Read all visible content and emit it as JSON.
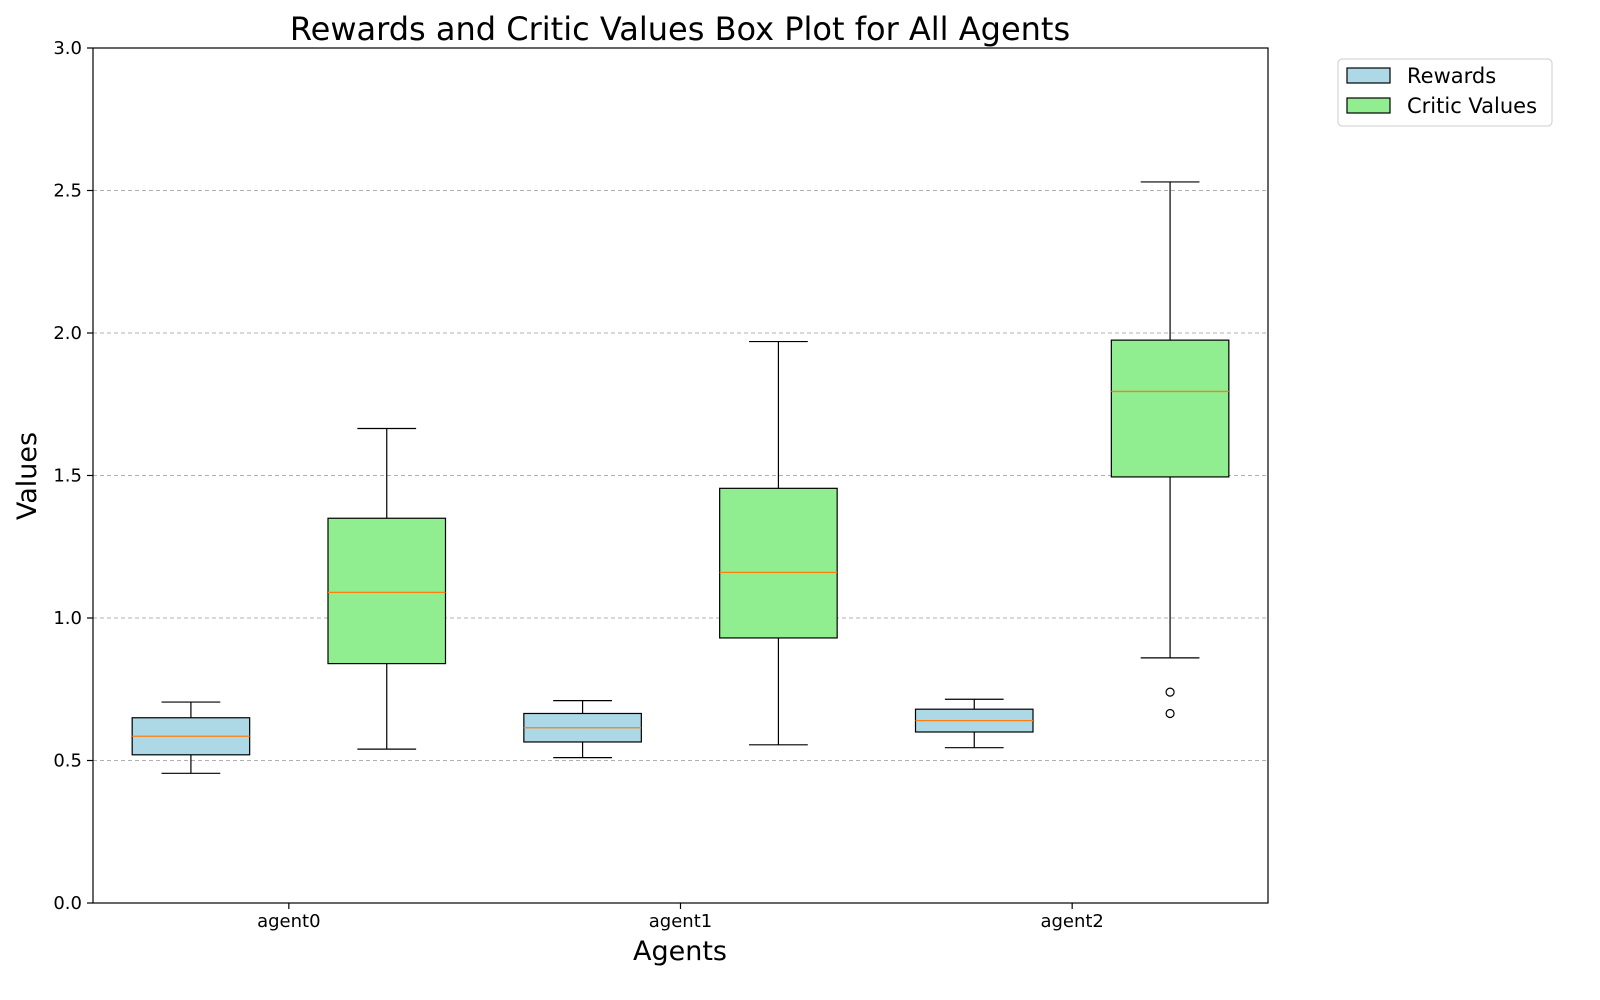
{
  "chart_data": {
    "type": "box",
    "title": "Rewards and Critic Values Box Plot for All Agents",
    "xlabel": "Agents",
    "ylabel": "Values",
    "ylim": [
      0,
      3
    ],
    "yticks": [
      "0.0",
      "0.5",
      "1.0",
      "1.5",
      "2.0",
      "2.5",
      "3.0"
    ],
    "grid": "y dashed",
    "legend_position": "outside top-right",
    "categories": [
      "agent0",
      "agent1",
      "agent2"
    ],
    "series": [
      {
        "name": "Rewards",
        "color": "#add8e6",
        "boxes": [
          {
            "whisker_low": 0.455,
            "q1": 0.52,
            "median": 0.585,
            "q3": 0.65,
            "whisker_high": 0.705,
            "outliers": []
          },
          {
            "whisker_low": 0.51,
            "q1": 0.565,
            "median": 0.615,
            "q3": 0.665,
            "whisker_high": 0.71,
            "outliers": []
          },
          {
            "whisker_low": 0.545,
            "q1": 0.6,
            "median": 0.64,
            "q3": 0.68,
            "whisker_high": 0.715,
            "outliers": []
          }
        ]
      },
      {
        "name": "Critic Values",
        "color": "#90ee90",
        "boxes": [
          {
            "whisker_low": 0.54,
            "q1": 0.84,
            "median": 1.09,
            "q3": 1.35,
            "whisker_high": 1.665,
            "outliers": []
          },
          {
            "whisker_low": 0.555,
            "q1": 0.93,
            "median": 1.16,
            "q3": 1.455,
            "whisker_high": 1.97,
            "outliers": []
          },
          {
            "whisker_low": 0.86,
            "q1": 1.495,
            "median": 1.795,
            "q3": 1.975,
            "whisker_high": 2.53,
            "outliers": [
              0.74,
              0.665
            ]
          }
        ]
      }
    ],
    "median_color": "#ff7f0e"
  }
}
